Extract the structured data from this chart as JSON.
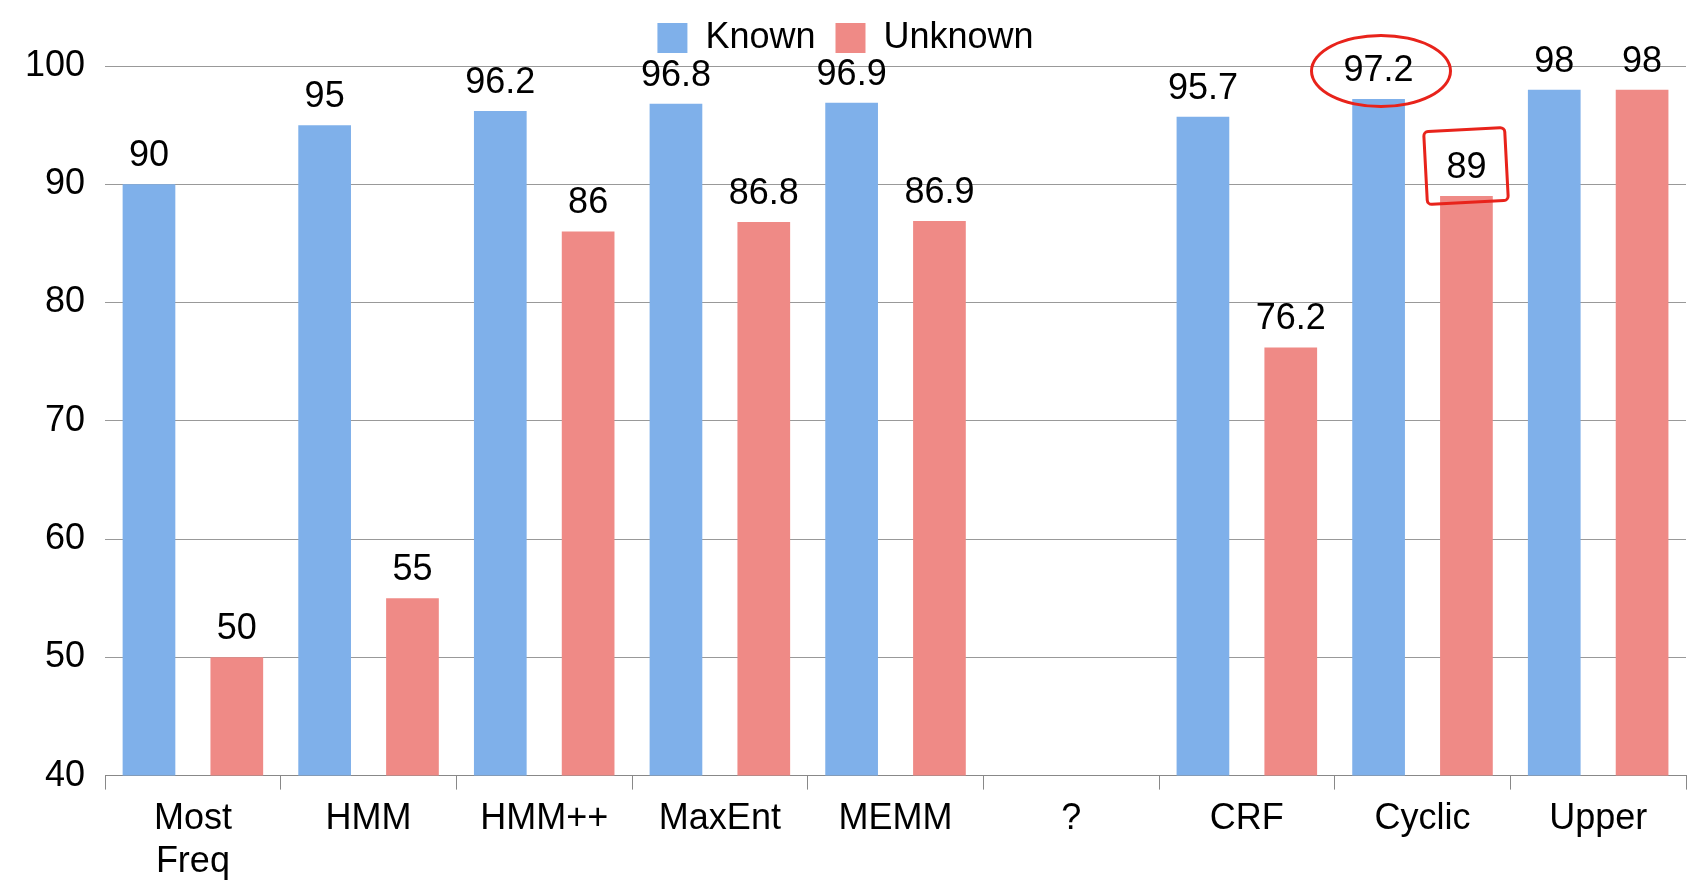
{
  "chart_data": {
    "type": "bar",
    "categories": [
      "Most Freq",
      "HMM",
      "HMM++",
      "MaxEnt",
      "MEMM",
      "?",
      "CRF",
      "Cyclic",
      "Upper"
    ],
    "series": [
      {
        "name": "Known",
        "color": "#7fb0ea",
        "values": [
          90,
          95,
          96.2,
          96.8,
          96.9,
          null,
          95.7,
          97.2,
          98
        ]
      },
      {
        "name": "Unknown",
        "color": "#ef8a86",
        "values": [
          50,
          55,
          86,
          86.8,
          86.9,
          null,
          76.2,
          89,
          98
        ]
      }
    ],
    "ylim": [
      40,
      100
    ],
    "yticks": [
      40,
      50,
      60,
      70,
      80,
      90,
      100
    ],
    "grid": "y",
    "legend": "top",
    "data_labels": true
  }
}
